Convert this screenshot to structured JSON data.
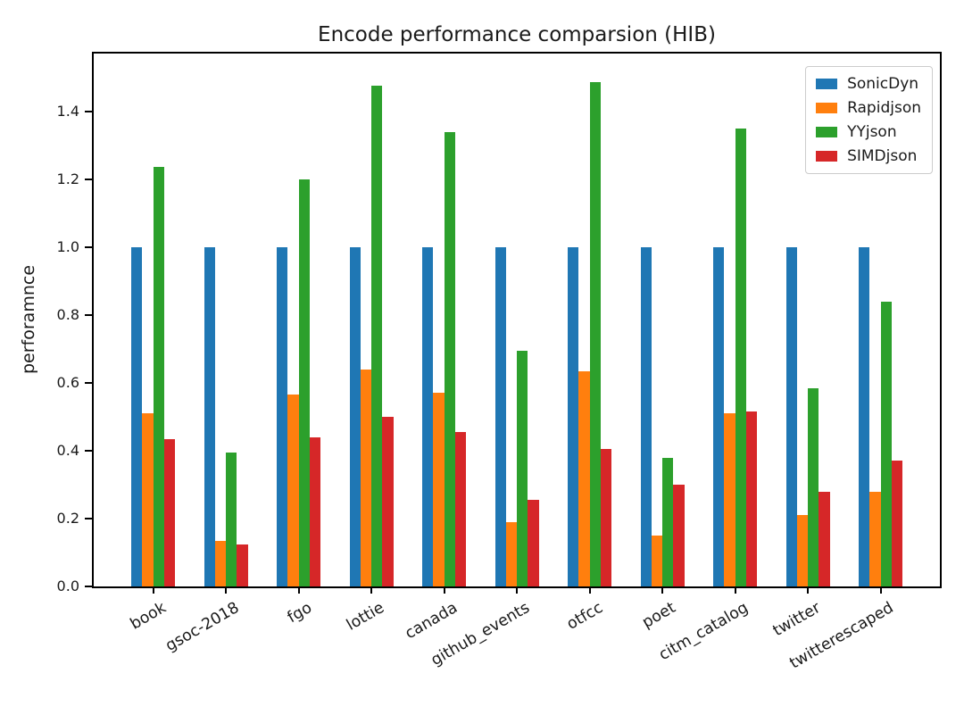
{
  "chart_data": {
    "type": "bar",
    "title": "Encode performance comparsion (HIB)",
    "xlabel": "",
    "ylabel": "perforamnce",
    "categories": [
      "book",
      "gsoc-2018",
      "fgo",
      "lottie",
      "canada",
      "github_events",
      "otfcc",
      "poet",
      "citm_catalog",
      "twitter",
      "twitterescaped"
    ],
    "series": [
      {
        "name": "SonicDyn",
        "color": "#1f77b4",
        "values": [
          1.0,
          1.0,
          1.0,
          1.0,
          1.0,
          1.0,
          1.0,
          1.0,
          1.0,
          1.0,
          1.0
        ]
      },
      {
        "name": "Rapidjson",
        "color": "#ff7f0e",
        "values": [
          0.51,
          0.135,
          0.565,
          0.64,
          0.57,
          0.19,
          0.635,
          0.15,
          0.51,
          0.21,
          0.28
        ]
      },
      {
        "name": "YYjson",
        "color": "#2ca02c",
        "values": [
          1.235,
          0.395,
          1.2,
          1.475,
          1.34,
          0.695,
          1.485,
          0.38,
          1.35,
          0.585,
          0.84
        ]
      },
      {
        "name": "SIMDjson",
        "color": "#d62728",
        "values": [
          0.435,
          0.125,
          0.44,
          0.5,
          0.455,
          0.255,
          0.405,
          0.3,
          0.515,
          0.28,
          0.37
        ]
      }
    ],
    "yticks": [
      0.0,
      0.2,
      0.4,
      0.6,
      0.8,
      1.0,
      1.2,
      1.4
    ],
    "ylim": [
      0,
      1.57
    ],
    "grid": false,
    "legend_position": "upper right",
    "xtick_rotation": 30,
    "spine_color": "#000000",
    "background_color": "#ffffff"
  }
}
